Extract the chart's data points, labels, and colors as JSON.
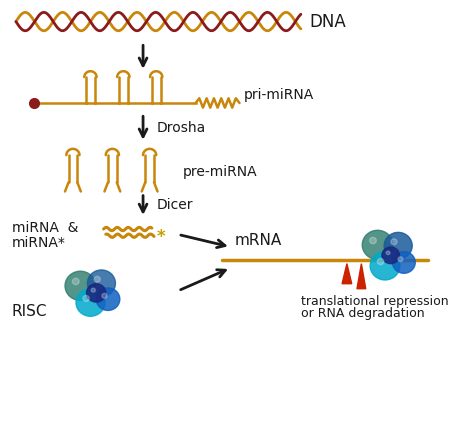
{
  "background_color": "#ffffff",
  "dna_color1": "#c8860a",
  "dna_color2": "#8b1a1a",
  "hairpin_color": "#c8860a",
  "arrow_color": "#1a1a1a",
  "label_color": "#1a1a1a",
  "risc_colors": [
    "#2a7a5a",
    "#1a5a8a",
    "#1060c0",
    "#00aacc",
    "#4488cc"
  ],
  "mRNA_color": "#c8860a",
  "red_arrow_color": "#cc2200",
  "labels": {
    "dna": "DNA",
    "pri_mirna": "pri-miRNA",
    "drosha": "Drosha",
    "pre_mirna": "pre-miRNA",
    "dicer": "Dicer",
    "mirna_line1": "miRNA  &",
    "mirna_line2": "miRNA*",
    "risc": "RISC",
    "mrna": "mRNA",
    "translational_line1": "translational repression",
    "translational_line2": "or RNA degradation"
  },
  "fig_width": 4.74,
  "fig_height": 4.23,
  "dpi": 100
}
